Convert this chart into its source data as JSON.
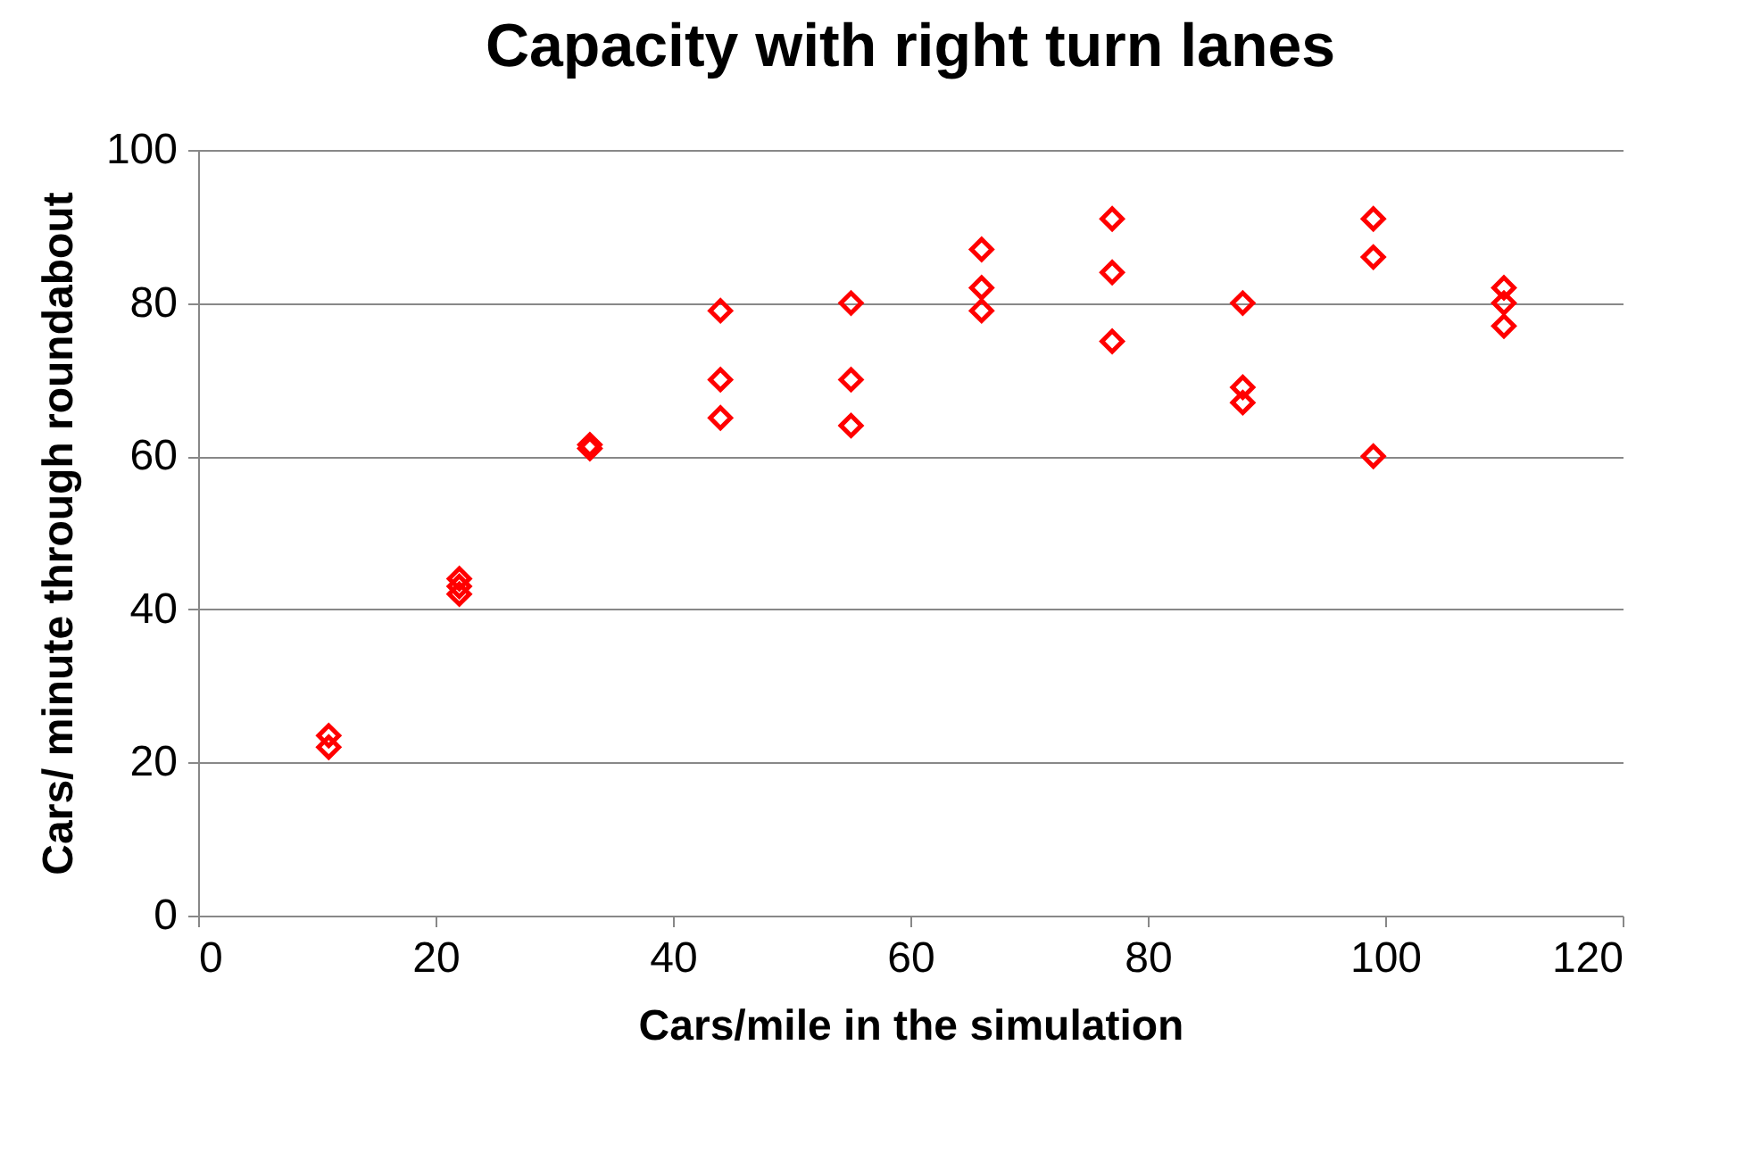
{
  "chart_data": {
    "type": "scatter",
    "title": "Capacity with right turn lanes",
    "xlabel": "Cars/mile in the simulation",
    "ylabel": "Cars/ minute through roundabout",
    "x": [
      11,
      11,
      22,
      22,
      22,
      33,
      33,
      44,
      44,
      44,
      55,
      55,
      55,
      66,
      66,
      66,
      77,
      77,
      77,
      88,
      88,
      88,
      99,
      99,
      99,
      110,
      110,
      110
    ],
    "series": [
      {
        "color": "#ff0000",
        "values": [
          23.5,
          22,
          44,
          43,
          42,
          61.5,
          61,
          79,
          70,
          65,
          80,
          70,
          64,
          87,
          82,
          79,
          91,
          84,
          75,
          80,
          69,
          67,
          91,
          86,
          60,
          82,
          80,
          77
        ]
      }
    ],
    "xlim": [
      0,
      120
    ],
    "xticks": [
      0,
      20,
      40,
      60,
      80,
      100,
      120
    ],
    "ylim": [
      0,
      100
    ],
    "yticks": [
      0,
      20,
      40,
      60,
      80,
      100
    ],
    "grid": "y",
    "marker": "diamond"
  }
}
